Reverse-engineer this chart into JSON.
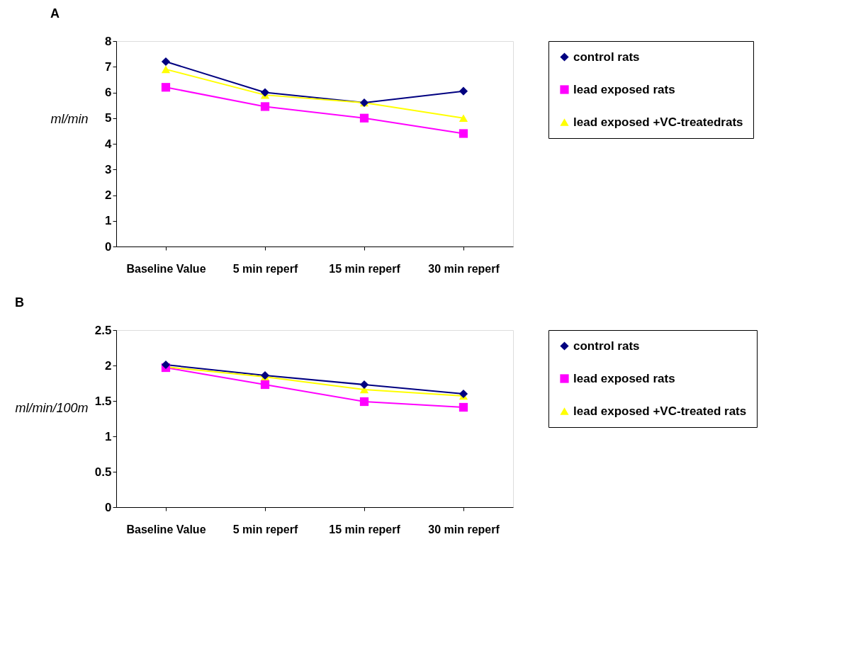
{
  "chart_data": [
    {
      "type": "line",
      "title": "A",
      "ylabel": "ml/min",
      "categories": [
        "Baseline Value",
        "5 min reperf",
        "15 min reperf",
        "30 min reperf"
      ],
      "ylim": [
        0,
        8
      ],
      "yticks": [
        0,
        1,
        2,
        3,
        4,
        5,
        6,
        7,
        8
      ],
      "grid": false,
      "legend": "right",
      "line_style": "solid",
      "series": [
        {
          "name": "control rats",
          "color": "#000080",
          "marker": "diamond",
          "values": [
            7.2,
            6.0,
            5.6,
            6.05
          ]
        },
        {
          "name": "lead exposed rats",
          "color": "#ff00ff",
          "marker": "square",
          "values": [
            6.2,
            5.45,
            5.0,
            4.4
          ]
        },
        {
          "name": "lead exposed +VC-treatedrats",
          "color": "#ffff00",
          "marker": "triangle",
          "values": [
            6.9,
            5.9,
            5.6,
            5.0
          ]
        }
      ]
    },
    {
      "type": "line",
      "title": "B",
      "ylabel": "ml/min/100m",
      "categories": [
        "Baseline Value",
        "5 min reperf",
        "15 min reperf",
        "30 min reperf"
      ],
      "ylim": [
        0,
        2.5
      ],
      "yticks": [
        0,
        0.5,
        1,
        1.5,
        2,
        2.5
      ],
      "grid": false,
      "legend": "right",
      "line_style": "solid",
      "series": [
        {
          "name": "control rats",
          "color": "#000080",
          "marker": "diamond",
          "values": [
            2.01,
            1.86,
            1.73,
            1.6
          ]
        },
        {
          "name": "lead exposed rats",
          "color": "#ff00ff",
          "marker": "square",
          "values": [
            1.97,
            1.73,
            1.49,
            1.41
          ]
        },
        {
          "name": "lead exposed +VC-treated rats",
          "color": "#ffff00",
          "marker": "triangle",
          "values": [
            1.98,
            1.84,
            1.66,
            1.57
          ]
        }
      ]
    }
  ]
}
